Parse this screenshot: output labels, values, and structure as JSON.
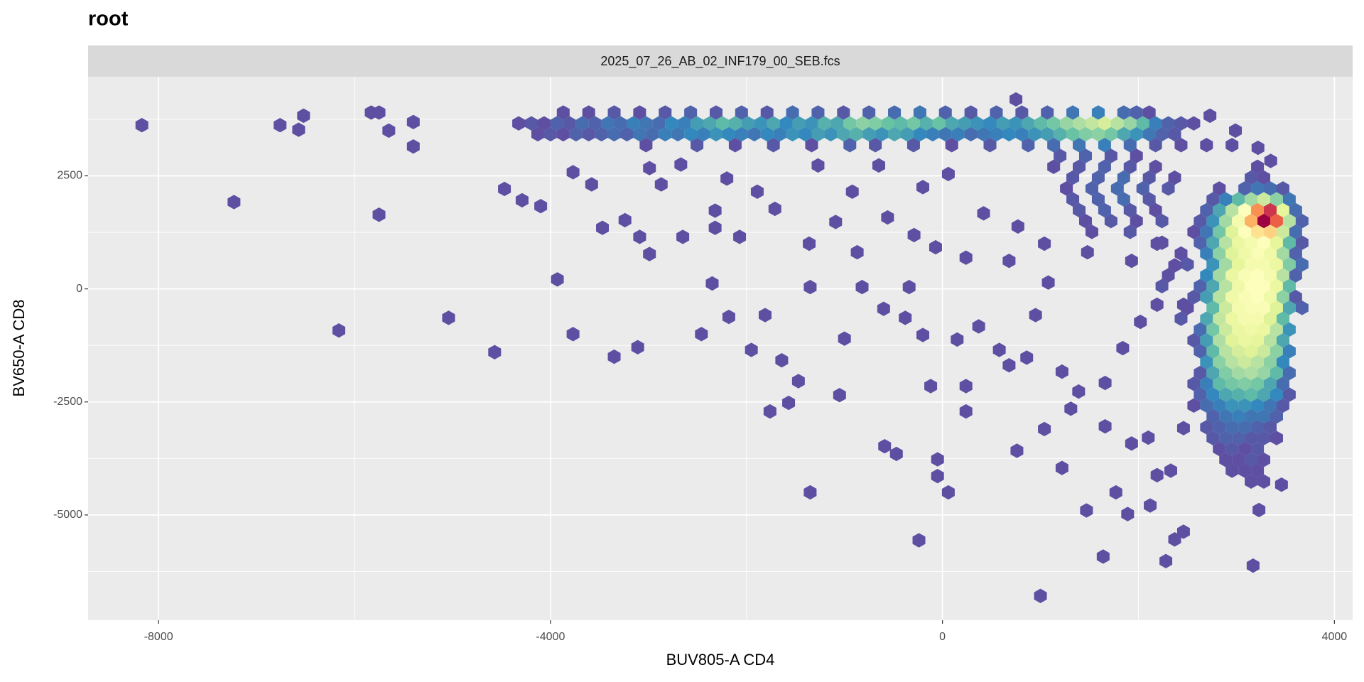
{
  "chart_data": {
    "type": "hexbin",
    "title": "root",
    "facet": "2025_07_26_AB_02_INF179_00_SEB.fcs",
    "xlabel": "BUV805-A CD4",
    "ylabel": "BV650-A CD8",
    "xlim": [
      -8719,
      4186
    ],
    "ylim": [
      -7327,
      4692
    ],
    "xticks": [
      -8000,
      -4000,
      0,
      4000
    ],
    "yticks": [
      -5000,
      -2500,
      0,
      2500
    ],
    "minor_xticks": [
      -6000,
      -2000,
      2000
    ],
    "minor_yticks": [
      3750,
      1250,
      -1250,
      -3750,
      -6250
    ],
    "grid": true,
    "colorscale": [
      "#5e4fa2",
      "#3288bd",
      "#66c2a5",
      "#abdda4",
      "#e6f598",
      "#ffffbf",
      "#fee08b",
      "#fdae61",
      "#f46d43",
      "#d53e4f",
      "#9e0142"
    ],
    "x": [
      -8170,
      -7230,
      -6760,
      -6570,
      -6520,
      -6160,
      -5830,
      -5750,
      -5750,
      -5650,
      -5400,
      -5400,
      -5040,
      -4570,
      -4470,
      -4290,
      -4100,
      -3930,
      -3770,
      -3770,
      -3580,
      -3470,
      -3350,
      -3240,
      -3110,
      -3090,
      -2990,
      -2990,
      -2870,
      -2670,
      -2650,
      -2460,
      -2350,
      -2320,
      -2320,
      -2180,
      -2070,
      -1950,
      -1810,
      -1760,
      -1640,
      -1570,
      -1470,
      -1350,
      -1350,
      -1050,
      -1000,
      -870,
      -820,
      -590,
      -470,
      -340,
      -240,
      -120,
      -50,
      -50,
      60,
      240,
      240,
      760,
      1000,
      1040,
      1220,
      1470,
      1640,
      1770,
      1890,
      2280,
      2460,
      2370,
      2120,
      2190,
      2330,
      3170,
      3230,
      3460,
      2460,
      2100,
      1660,
      1930,
      860,
      1220,
      950,
      580,
      -380,
      -600,
      -200,
      150,
      370,
      680,
      1310,
      1390,
      1660,
      1840,
      2020,
      2190,
      1080,
      680,
      240,
      -70,
      -290,
      -560,
      -1090,
      -1360,
      -1710,
      -1890,
      -2200,
      -1270,
      -920,
      -650,
      -200,
      60,
      420,
      770,
      1040,
      1480,
      1930,
      2190,
      2370,
      2460,
      2730,
      2990,
      3220,
      3350,
      750,
      -3870,
      -3610,
      -3350,
      -3090,
      -2830,
      -2570,
      -2310,
      -2050,
      -1790,
      -1530,
      -1270,
      -1010,
      -750,
      -490,
      -230,
      30,
      290,
      550,
      810,
      1070,
      1330,
      1590,
      1850,
      1980,
      2110,
      -4325,
      -4195,
      -4065,
      -3935,
      -3805,
      -3675,
      -3545,
      -3415,
      -3285,
      -3155,
      -3025,
      -2895,
      -2765,
      -2635,
      -2505,
      -2375,
      -2245,
      -2115,
      -1985,
      -1855,
      -1725,
      -1595,
      -1465,
      -1335,
      -1205,
      -1075,
      -945,
      -815,
      -685,
      -555,
      -425,
      -295,
      -165,
      -35,
      95,
      225,
      355,
      485,
      615,
      745,
      875,
      1005,
      1135,
      1265,
      1395,
      1525,
      1655,
      1785,
      1915,
      2045,
      2175,
      2305,
      2435,
      2565,
      -4130,
      -4000,
      -3870,
      -3740,
      -3610,
      -3480,
      -3350,
      -3220,
      -3090,
      -2960,
      -2830,
      -2700,
      -2570,
      -2440,
      -2310,
      -2180,
      -2050,
      -1920,
      -1790,
      -1660,
      -1530,
      -1400,
      -1270,
      -1140,
      -1010,
      -880,
      -750,
      -620,
      -490,
      -360,
      -230,
      -100,
      30,
      160,
      290,
      420,
      550,
      680,
      810,
      940,
      1070,
      1200,
      1330,
      1460,
      1590,
      1720,
      1850,
      1980,
      2110,
      2240,
      2370,
      -3025,
      -2505,
      -2115,
      -1725,
      -1335,
      -945,
      -685,
      -295,
      95,
      485,
      875,
      1135,
      1395,
      1655,
      1915,
      2175,
      2435,
      2695,
      2955,
      1200,
      1460,
      1720,
      1980,
      1135,
      1395,
      1655,
      1915,
      2175,
      3215,
      1330,
      1590,
      1850,
      2110,
      2370,
      3150,
      3280,
      1265,
      1525,
      1785,
      2045,
      2305,
      2825,
      3085,
      3215,
      3345,
      3475,
      1330,
      1590,
      1850,
      2110,
      2760,
      2890,
      3020,
      3150,
      3280,
      3410,
      3540,
      1395,
      1655,
      1915,
      2175,
      2695,
      2825,
      2955,
      3085,
      3215,
      3345,
      3475,
      3605,
      1460,
      1720,
      1980,
      2240,
      2630,
      2760,
      2890,
      3020,
      3150,
      3280,
      3410,
      3540,
      3670,
      1525,
      1915,
      2565,
      2695,
      2825,
      2955,
      3085,
      3215,
      3345,
      3475,
      3605,
      2240,
      2630,
      2760,
      2890,
      3020,
      3150,
      3280,
      3410,
      3540,
      3670,
      2435,
      2695,
      2825,
      2955,
      3085,
      3215,
      3345,
      3475,
      3605,
      2500,
      2760,
      2890,
      3020,
      3150,
      3280,
      3410,
      3540,
      3670,
      2305,
      2695,
      2825,
      2955,
      3085,
      3215,
      3345,
      3475,
      3605,
      2240,
      2630,
      2760,
      2890,
      3020,
      3150,
      3280,
      3410,
      3540,
      2565,
      2695,
      2825,
      2955,
      3085,
      3215,
      3345,
      3475,
      3605,
      2500,
      2760,
      2890,
      3020,
      3150,
      3280,
      3410,
      3540,
      3670,
      2435,
      2695,
      2825,
      2955,
      3085,
      3215,
      3345,
      3475,
      2630,
      2760,
      2890,
      3020,
      3150,
      3280,
      3410,
      3540,
      2565,
      2695,
      2825,
      2955,
      3085,
      3215,
      3345,
      3475,
      2630,
      2760,
      2890,
      3020,
      3150,
      3280,
      3410,
      3540,
      2695,
      2825,
      2955,
      3085,
      3215,
      3345,
      3475,
      2630,
      2760,
      2890,
      3020,
      3150,
      3280,
      3410,
      3540,
      2565,
      2695,
      2825,
      2955,
      3085,
      3215,
      3345,
      3475,
      2630,
      2760,
      2890,
      3020,
      3150,
      3280,
      3410,
      3540,
      2565,
      2695,
      2825,
      2955,
      3085,
      3215,
      3345,
      3475,
      2760,
      2890,
      3020,
      3150,
      3280,
      3410,
      2695,
      2825,
      2955,
      3085,
      3215,
      3345,
      2760,
      2890,
      3020,
      3150,
      3280,
      3410,
      2825,
      2955,
      3085,
      3215,
      2890,
      3020,
      3150,
      3280,
      2955,
      3085,
      3215,
      3150,
      3280
    ],
    "y": [
      3620,
      1920,
      3620,
      3520,
      3830,
      -920,
      3900,
      3900,
      1640,
      3500,
      3150,
      3690,
      -640,
      -1400,
      2210,
      1960,
      1830,
      210,
      -1000,
      2580,
      2310,
      1350,
      -1500,
      1520,
      -1290,
      1150,
      770,
      2670,
      2310,
      2750,
      1150,
      -1000,
      120,
      1730,
      1350,
      -620,
      1150,
      -1350,
      -580,
      -2710,
      -1580,
      -2520,
      -2040,
      -4500,
      40,
      -2350,
      -1100,
      810,
      40,
      -3480,
      -3650,
      40,
      -5560,
      -2150,
      -3770,
      -4140,
      -4500,
      -2710,
      -2150,
      -3580,
      -6790,
      -3100,
      -3960,
      -4900,
      -5920,
      -4500,
      -4980,
      -6020,
      -5370,
      -5540,
      -4790,
      -4120,
      -4020,
      -6120,
      -4890,
      -4330,
      -3080,
      -3290,
      -3040,
      -3420,
      -1520,
      -1830,
      -580,
      -1350,
      -640,
      -440,
      -1020,
      -1120,
      -830,
      -1690,
      -2650,
      -2270,
      -2080,
      -1310,
      -730,
      -350,
      140,
      620,
      690,
      920,
      1190,
      1580,
      1480,
      1000,
      1770,
      2150,
      2440,
      2730,
      2150,
      2730,
      2250,
      2540,
      1670,
      1380,
      1000,
      810,
      620,
      1000,
      520,
      -350,
      3830,
      3500,
      3120,
      2830,
      4190,
      3900,
      3900,
      3900,
      3900,
      3900,
      3900,
      3900,
      3900,
      3900,
      3900,
      3900,
      3900,
      3900,
      3900,
      3900,
      3900,
      3900,
      3900,
      3900,
      3900,
      3900,
      3900,
      3900,
      3900,
      3900,
      3660,
      3660,
      3660,
      3660,
      3660,
      3660,
      3660,
      3660,
      3660,
      3660,
      3660,
      3660,
      3660,
      3660,
      3660,
      3660,
      3660,
      3660,
      3660,
      3660,
      3660,
      3660,
      3660,
      3660,
      3660,
      3660,
      3660,
      3660,
      3660,
      3660,
      3660,
      3660,
      3660,
      3660,
      3660,
      3660,
      3660,
      3660,
      3660,
      3660,
      3660,
      3660,
      3660,
      3660,
      3660,
      3660,
      3660,
      3660,
      3660,
      3660,
      3660,
      3660,
      3660,
      3660,
      3420,
      3420,
      3420,
      3420,
      3420,
      3420,
      3420,
      3420,
      3420,
      3420,
      3420,
      3420,
      3420,
      3420,
      3420,
      3420,
      3420,
      3420,
      3420,
      3420,
      3420,
      3420,
      3420,
      3420,
      3420,
      3420,
      3420,
      3420,
      3420,
      3420,
      3420,
      3420,
      3420,
      3420,
      3420,
      3420,
      3420,
      3420,
      3420,
      3420,
      3420,
      3420,
      3420,
      3420,
      3420,
      3420,
      3420,
      3420,
      3420,
      3420,
      3420,
      3180,
      3180,
      3180,
      3180,
      3180,
      3180,
      3180,
      3180,
      3180,
      3180,
      3180,
      3180,
      3180,
      3180,
      3180,
      3180,
      3180,
      3180,
      3180,
      2940,
      2940,
      2940,
      2940,
      2700,
      2700,
      2700,
      2700,
      2700,
      2700,
      2460,
      2460,
      2460,
      2460,
      2460,
      2460,
      2460,
      2220,
      2220,
      2220,
      2220,
      2220,
      2220,
      2220,
      2220,
      2220,
      2220,
      1980,
      1980,
      1980,
      1980,
      1980,
      1980,
      1980,
      1980,
      1980,
      1980,
      1980,
      1740,
      1740,
      1740,
      1740,
      1740,
      1740,
      1740,
      1740,
      1740,
      1740,
      1740,
      1740,
      1500,
      1500,
      1500,
      1500,
      1500,
      1500,
      1500,
      1500,
      1500,
      1500,
      1500,
      1500,
      1500,
      1260,
      1260,
      1260,
      1260,
      1260,
      1260,
      1260,
      1260,
      1260,
      1260,
      1260,
      1020,
      1020,
      1020,
      1020,
      1020,
      1020,
      1020,
      1020,
      1020,
      1020,
      780,
      780,
      780,
      780,
      780,
      780,
      780,
      780,
      780,
      540,
      540,
      540,
      540,
      540,
      540,
      540,
      540,
      540,
      300,
      300,
      300,
      300,
      300,
      300,
      300,
      300,
      300,
      60,
      60,
      60,
      60,
      60,
      60,
      60,
      60,
      60,
      -180,
      -180,
      -180,
      -180,
      -180,
      -180,
      -180,
      -180,
      -180,
      -420,
      -420,
      -420,
      -420,
      -420,
      -420,
      -420,
      -420,
      -420,
      -660,
      -660,
      -660,
      -660,
      -660,
      -660,
      -660,
      -660,
      -900,
      -900,
      -900,
      -900,
      -900,
      -900,
      -900,
      -900,
      -1140,
      -1140,
      -1140,
      -1140,
      -1140,
      -1140,
      -1140,
      -1140,
      -1380,
      -1380,
      -1380,
      -1380,
      -1380,
      -1380,
      -1380,
      -1380,
      -1620,
      -1620,
      -1620,
      -1620,
      -1620,
      -1620,
      -1620,
      -1860,
      -1860,
      -1860,
      -1860,
      -1860,
      -1860,
      -1860,
      -1860,
      -2100,
      -2100,
      -2100,
      -2100,
      -2100,
      -2100,
      -2100,
      -2100,
      -2340,
      -2340,
      -2340,
      -2340,
      -2340,
      -2340,
      -2340,
      -2340,
      -2580,
      -2580,
      -2580,
      -2580,
      -2580,
      -2580,
      -2580,
      -2580,
      -2820,
      -2820,
      -2820,
      -2820,
      -2820,
      -2820,
      -3060,
      -3060,
      -3060,
      -3060,
      -3060,
      -3060,
      -3300,
      -3300,
      -3300,
      -3300,
      -3300,
      -3300,
      -3540,
      -3540,
      -3540,
      -3540,
      -3780,
      -3780,
      -3780,
      -3780,
      -4020,
      -4020,
      -4020,
      -4260,
      -4260
    ],
    "values": [
      1,
      1,
      1,
      1,
      1,
      1,
      1,
      1,
      1,
      1,
      1,
      1,
      1,
      1,
      1,
      1,
      1,
      1,
      1,
      1,
      1,
      1,
      1,
      1,
      1,
      1,
      1,
      1,
      1,
      1,
      1,
      1,
      1,
      1,
      1,
      1,
      1,
      1,
      1,
      1,
      1,
      1,
      1,
      1,
      1,
      1,
      1,
      1,
      1,
      1,
      1,
      1,
      1,
      1,
      1,
      1,
      1,
      1,
      1,
      1,
      1,
      1,
      1,
      1,
      1,
      1,
      1,
      1,
      1,
      1,
      1,
      1,
      1,
      1,
      1,
      1,
      1,
      1,
      1,
      1,
      1,
      1,
      1,
      1,
      1,
      1,
      1,
      1,
      1,
      1,
      1,
      1,
      1,
      1,
      1,
      1,
      1,
      1,
      1,
      1,
      1,
      1,
      1,
      1,
      1,
      1,
      1,
      1,
      1,
      1,
      1,
      1,
      1,
      1,
      1,
      1,
      1,
      1,
      1,
      1,
      1,
      1,
      1,
      1,
      1,
      1,
      1,
      2,
      1,
      2,
      3,
      2,
      3,
      2,
      4,
      3,
      2,
      3,
      4,
      5,
      3,
      2,
      3,
      2,
      3,
      5,
      6,
      4,
      3,
      1,
      1,
      2,
      1,
      3,
      2,
      4,
      3,
      5,
      4,
      6,
      5,
      4,
      7,
      6,
      9,
      10,
      12,
      11,
      9,
      8,
      10,
      7,
      9,
      8,
      11,
      10,
      14,
      16,
      15,
      13,
      12,
      14,
      11,
      13,
      10,
      9,
      8,
      7,
      9,
      8,
      10,
      12,
      14,
      17,
      19,
      21,
      23,
      20,
      17,
      12,
      6,
      3,
      2,
      1,
      1,
      2,
      1,
      3,
      2,
      3,
      4,
      3,
      5,
      4,
      6,
      5,
      7,
      6,
      8,
      7,
      6,
      5,
      7,
      6,
      8,
      7,
      9,
      8,
      10,
      11,
      9,
      8,
      10,
      9,
      7,
      6,
      5,
      6,
      4,
      5,
      6,
      7,
      6,
      8,
      9,
      11,
      13,
      15,
      16,
      14,
      10,
      8,
      5,
      3,
      2,
      1,
      2,
      1,
      2,
      1,
      3,
      2,
      2,
      1,
      2,
      3,
      4,
      5,
      6,
      4,
      2,
      1,
      1,
      1,
      2,
      3,
      2,
      1,
      1,
      2,
      3,
      2,
      1,
      1,
      2,
      3,
      4,
      2,
      1,
      2,
      1,
      1,
      3,
      4,
      3,
      2,
      1,
      3,
      5,
      4,
      2,
      2,
      3,
      4,
      2,
      2,
      6,
      12,
      18,
      22,
      16,
      5,
      2,
      3,
      2,
      1,
      3,
      10,
      20,
      30,
      45,
      55,
      25,
      4,
      1,
      2,
      1,
      2,
      2,
      8,
      18,
      28,
      42,
      60,
      50,
      20,
      3,
      1,
      2,
      1,
      5,
      14,
      24,
      30,
      36,
      38,
      22,
      4,
      1,
      3,
      10,
      20,
      26,
      28,
      30,
      25,
      12,
      2,
      1,
      6,
      16,
      24,
      27,
      29,
      27,
      18,
      3,
      2,
      8,
      18,
      25,
      28,
      28,
      26,
      15,
      4,
      1,
      7,
      18,
      26,
      29,
      30,
      28,
      20,
      3,
      2,
      3,
      10,
      20,
      27,
      30,
      30,
      26,
      12,
      2,
      9,
      20,
      27,
      29,
      30,
      27,
      16,
      2,
      1,
      12,
      22,
      28,
      29,
      29,
      24,
      10,
      3,
      2,
      10,
      21,
      26,
      28,
      28,
      24,
      12,
      4,
      14,
      22,
      26,
      27,
      26,
      20,
      8,
      2,
      9,
      19,
      24,
      26,
      25,
      20,
      10,
      3,
      12,
      20,
      23,
      24,
      22,
      16,
      6,
      8,
      16,
      20,
      22,
      20,
      16,
      7,
      2,
      10,
      15,
      18,
      19,
      17,
      12,
      4,
      2,
      6,
      12,
      14,
      15,
      14,
      10,
      4,
      3,
      7,
      10,
      11,
      12,
      10,
      7,
      2,
      1,
      4,
      6,
      8,
      8,
      7,
      5,
      2,
      3,
      5,
      6,
      5,
      5,
      3,
      2,
      3,
      4,
      4,
      3,
      2,
      2,
      3,
      3,
      2,
      2,
      1,
      1,
      2,
      1,
      2,
      1,
      1,
      2,
      1,
      1,
      1,
      1,
      1,
      1
    ]
  }
}
